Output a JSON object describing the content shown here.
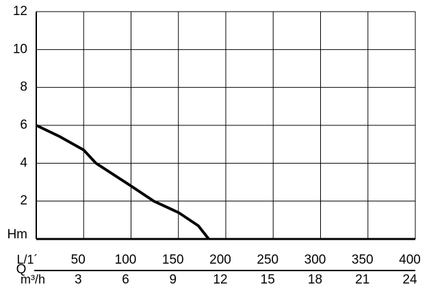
{
  "chart_data": {
    "type": "line",
    "x": [
      0,
      25,
      50,
      63,
      100,
      124,
      150,
      171,
      182
    ],
    "series": [
      {
        "color": "#000000",
        "values": [
          6,
          5.4,
          4.7,
          4,
          2.8,
          2,
          1.4,
          0.7,
          0
        ]
      }
    ],
    "xlim": [
      0,
      400
    ],
    "xticks": [
      50,
      100,
      150,
      200,
      250,
      300,
      350,
      400
    ],
    "x_unit_label": "L/1´",
    "x2lim": [
      0,
      24
    ],
    "x2ticks": [
      3,
      6,
      9,
      12,
      15,
      18,
      21,
      24
    ],
    "x2_unit_label": "m³/h",
    "x_axis_label": "Q",
    "ylim": [
      0,
      12
    ],
    "yticks": [
      {
        "value": 0,
        "label": "Hm"
      },
      2,
      4,
      6,
      8,
      10,
      12
    ],
    "grid": true
  }
}
